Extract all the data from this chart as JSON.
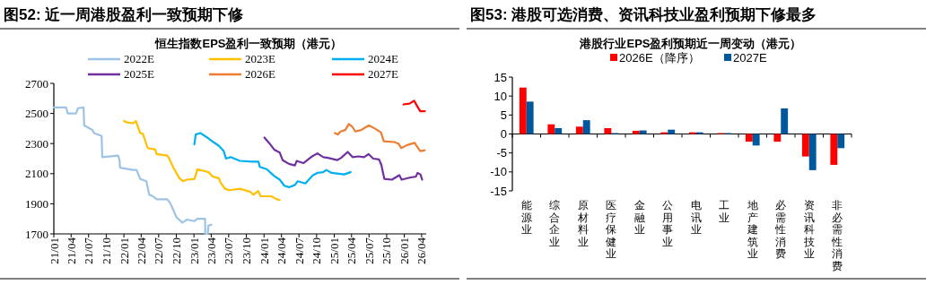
{
  "chart_data": [
    {
      "type": "line",
      "title": "图52:  近一周港股盈利一致预期下修",
      "subtitle": "恒生指数EPS盈利一致预期（港元）",
      "legend": "top",
      "xlim": [
        "2021-01-01",
        "2026-04-25"
      ],
      "ylim": [
        1700,
        2700
      ],
      "yticks": [
        1700,
        1900,
        2100,
        2300,
        2500,
        2700
      ],
      "xticks": [
        {
          "value": "2021-01",
          "label": "21/01"
        },
        {
          "value": "2021-04",
          "label": "21/04"
        },
        {
          "value": "2021-07",
          "label": "21/07"
        },
        {
          "value": "2021-10",
          "label": "21/10"
        },
        {
          "value": "2022-01",
          "label": "22/01"
        },
        {
          "value": "2022-04",
          "label": "22/04"
        },
        {
          "value": "2022-07",
          "label": "22/07"
        },
        {
          "value": "2022-10",
          "label": "22/10"
        },
        {
          "value": "2023-01",
          "label": "23/01"
        },
        {
          "value": "2023-04",
          "label": "23/04"
        },
        {
          "value": "2023-07",
          "label": "23/07"
        },
        {
          "value": "2023-10",
          "label": "23/10"
        },
        {
          "value": "2024-01",
          "label": "24/01"
        },
        {
          "value": "2024-04",
          "label": "24/04"
        },
        {
          "value": "2024-07",
          "label": "24/07"
        },
        {
          "value": "2024-10",
          "label": "24/10"
        },
        {
          "value": "2025-01",
          "label": "25/01"
        },
        {
          "value": "2025-04",
          "label": "25/04"
        },
        {
          "value": "2025-07",
          "label": "25/07"
        },
        {
          "value": "2025-10",
          "label": "25/10"
        },
        {
          "value": "2026-01",
          "label": "26/01"
        },
        {
          "value": "2026-04",
          "label": "26/04"
        }
      ],
      "series": [
        {
          "name": "2022E",
          "color": "#9dc3e6",
          "x": [
            "2021-01-01",
            "2021-03-05",
            "2021-03-15",
            "2021-04-26",
            "2021-05-07",
            "2021-06-05",
            "2021-06-08",
            "2021-07-21",
            "2021-07-29",
            "2021-09-07",
            "2021-09-10",
            "2021-12-02",
            "2021-12-09",
            "2021-12-12",
            "2022-02-18",
            "2022-03-08",
            "2022-03-27",
            "2022-04-28",
            "2022-05-13",
            "2022-06-01",
            "2022-06-21",
            "2022-08-15",
            "2022-09-01",
            "2022-10-02",
            "2022-11-02",
            "2022-11-25",
            "2023-01-04",
            "2023-01-19",
            "2023-02-28",
            "2023-03-01",
            "2023-03-14",
            "2023-03-17",
            "2023-04-02"
          ],
          "values": [
            2540,
            2540,
            2500,
            2500,
            2535,
            2540,
            2420,
            2390,
            2370,
            2350,
            2210,
            2220,
            2190,
            2140,
            2125,
            2125,
            2065,
            2050,
            1960,
            1950,
            1930,
            1930,
            1900,
            1810,
            1775,
            1795,
            1785,
            1800,
            1800,
            1700,
            1700,
            1755,
            1760
          ]
        },
        {
          "name": "2023E",
          "color": "#ffc000",
          "x": [
            "2022-01-02",
            "2022-01-17",
            "2022-02-18",
            "2022-03-04",
            "2022-03-27",
            "2022-04-10",
            "2022-05-05",
            "2022-06-14",
            "2022-06-20",
            "2022-08-15",
            "2022-08-25",
            "2022-09-16",
            "2022-10-17",
            "2022-11-05",
            "2022-11-25",
            "2023-01-04",
            "2023-01-19",
            "2023-02-18",
            "2023-03-18",
            "2023-04-10",
            "2023-05-11",
            "2023-05-20",
            "2023-06-12",
            "2023-07-04",
            "2023-08-28",
            "2023-10-21",
            "2023-11-06",
            "2023-12-01",
            "2023-12-15",
            "2024-02-08",
            "2024-03-08",
            "2024-03-23"
          ],
          "values": [
            2450,
            2440,
            2435,
            2450,
            2370,
            2365,
            2270,
            2260,
            2230,
            2220,
            2200,
            2140,
            2070,
            2050,
            2060,
            2065,
            2130,
            2120,
            2110,
            2080,
            2070,
            2040,
            2000,
            1990,
            2000,
            1980,
            1960,
            1985,
            1950,
            1950,
            1930,
            1925
          ]
        },
        {
          "name": "2024E",
          "color": "#00b0f0",
          "x": [
            "2023-01-03",
            "2023-01-10",
            "2023-02-03",
            "2023-03-11",
            "2023-04-12",
            "2023-05-11",
            "2023-06-05",
            "2023-06-17",
            "2023-07-11",
            "2023-08-28",
            "2023-10-29",
            "2023-12-03",
            "2023-12-10",
            "2024-01-15",
            "2024-02-23",
            "2024-03-23",
            "2024-04-16",
            "2024-05-10",
            "2024-06-10",
            "2024-06-25",
            "2024-08-03",
            "2024-09-12",
            "2024-10-05",
            "2024-11-05",
            "2024-11-20",
            "2024-12-19",
            "2025-02-21",
            "2025-03-27"
          ],
          "values": [
            2295,
            2360,
            2370,
            2340,
            2310,
            2285,
            2250,
            2200,
            2210,
            2185,
            2180,
            2180,
            2145,
            2130,
            2085,
            2060,
            2020,
            2010,
            2025,
            2050,
            2035,
            2090,
            2105,
            2110,
            2125,
            2105,
            2095,
            2110
          ]
        },
        {
          "name": "2025E",
          "color": "#7030a0",
          "x": [
            "2024-01-03",
            "2024-01-30",
            "2024-02-23",
            "2024-03-23",
            "2024-04-07",
            "2024-05-10",
            "2024-06-10",
            "2024-06-19",
            "2024-07-24",
            "2024-09-02",
            "2024-10-05",
            "2024-11-05",
            "2024-11-29",
            "2025-01-16",
            "2025-02-06",
            "2025-03-12",
            "2025-04-06",
            "2025-05-06",
            "2025-06-05",
            "2025-06-29",
            "2025-07-23",
            "2025-08-22",
            "2025-09-03",
            "2025-09-19",
            "2025-10-28",
            "2025-12-06",
            "2025-12-18",
            "2026-02-02",
            "2026-03-02",
            "2026-03-11",
            "2026-03-26",
            "2026-04-04"
          ],
          "values": [
            2340,
            2300,
            2260,
            2240,
            2190,
            2165,
            2155,
            2185,
            2170,
            2210,
            2235,
            2210,
            2205,
            2190,
            2205,
            2245,
            2210,
            2215,
            2210,
            2230,
            2200,
            2195,
            2160,
            2065,
            2060,
            2090,
            2060,
            2075,
            2080,
            2105,
            2095,
            2060
          ]
        },
        {
          "name": "2026E",
          "color": "#ed7d31",
          "x": [
            "2025-01-04",
            "2025-01-19",
            "2025-02-03",
            "2025-02-27",
            "2025-03-18",
            "2025-04-06",
            "2025-04-21",
            "2025-05-21",
            "2025-06-15",
            "2025-07-01",
            "2025-07-31",
            "2025-09-01",
            "2025-09-16",
            "2025-11-09",
            "2025-12-01",
            "2025-12-16",
            "2026-01-16",
            "2026-02-24",
            "2026-03-03",
            "2026-03-25",
            "2026-04-18"
          ],
          "values": [
            2370,
            2360,
            2380,
            2390,
            2430,
            2410,
            2380,
            2390,
            2410,
            2420,
            2400,
            2375,
            2315,
            2310,
            2300,
            2270,
            2290,
            2305,
            2290,
            2250,
            2255
          ]
        },
        {
          "name": "2027E",
          "color": "#ff0000",
          "x": [
            "2025-12-28",
            "2026-01-28",
            "2026-02-21",
            "2026-03-06",
            "2026-03-25",
            "2026-04-18"
          ],
          "values": [
            2560,
            2565,
            2585,
            2555,
            2515,
            2515
          ]
        }
      ]
    },
    {
      "type": "bar",
      "title": "图53:  港股可选消费、资讯科技业盈利预期下修最多",
      "subtitle": "港股行业EPS盈利预期近一周变动（港元）",
      "legend": "top",
      "categories": [
        "能源业",
        "综合企业",
        "原材料业",
        "医疗保健业",
        "金融业",
        "公用事业",
        "电讯业",
        "工业",
        "地产建筑业",
        "必需性消费",
        "资讯科技业",
        "非必需性消费"
      ],
      "ylim": [
        -15,
        15
      ],
      "yticks": [
        -15,
        -10,
        -5,
        0,
        5,
        10,
        15
      ],
      "series": [
        {
          "name": "2026E（降序）",
          "color": "#ff0000",
          "values": [
            12.0,
            2.3,
            1.7,
            1.3,
            0.6,
            0.2,
            0.2,
            0,
            -1.8,
            -1.8,
            -5.7,
            -7.9
          ]
        },
        {
          "name": "2027E",
          "color": "#00589c",
          "values": [
            8.3,
            1.3,
            3.4,
            0,
            0.7,
            0.9,
            0.2,
            0,
            -2.8,
            6.5,
            -9.3,
            -3.5
          ]
        }
      ]
    }
  ]
}
